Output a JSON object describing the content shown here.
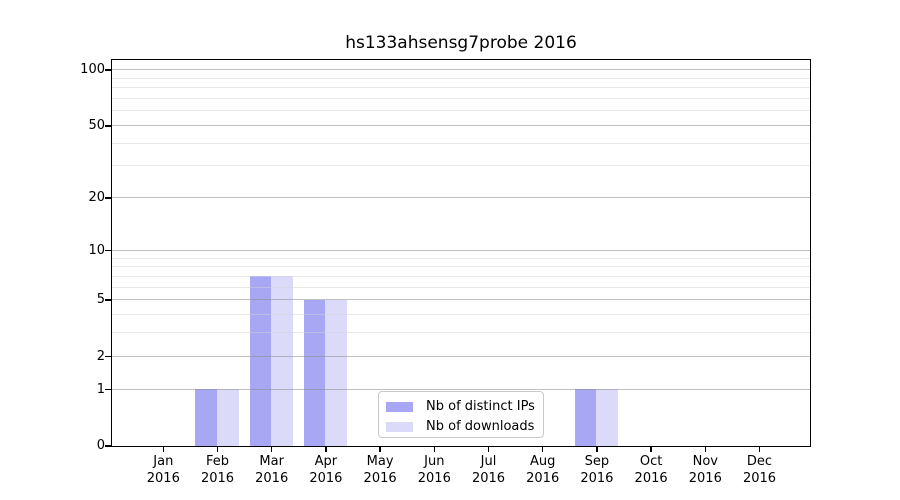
{
  "chart_data": {
    "type": "bar",
    "title": "hs133ahsensg7probe 2016",
    "categories": [
      "Jan",
      "Feb",
      "Mar",
      "Apr",
      "May",
      "Jun",
      "Jul",
      "Aug",
      "Sep",
      "Oct",
      "Nov",
      "Dec"
    ],
    "category_year": "2016",
    "series": [
      {
        "name": "Nb of distinct IPs",
        "color": "#a7a7f4",
        "values": [
          0,
          1,
          7,
          5,
          0,
          0,
          0,
          0,
          1,
          0,
          0,
          0
        ]
      },
      {
        "name": "Nb of downloads",
        "color": "#dbdbf9",
        "values": [
          0,
          1,
          7,
          5,
          0,
          0,
          0,
          0,
          1,
          0,
          0,
          0
        ]
      }
    ],
    "xlabel": "",
    "ylabel": "",
    "y_axis": {
      "scale": "log1p",
      "tick_values": [
        0,
        1,
        2,
        5,
        10,
        20,
        50,
        100
      ],
      "minor_gridline_values": [
        3,
        4,
        6,
        7,
        8,
        9,
        30,
        40,
        60,
        70,
        80,
        90
      ],
      "ylim": [
        0,
        111
      ]
    },
    "grid": "on",
    "legend": {
      "position": "lower center"
    },
    "colors": {
      "background": "#ffffff",
      "spine": "#000000",
      "major_grid": "#c9c9c9",
      "minor_grid": "#ededed",
      "text": "#000000"
    }
  }
}
